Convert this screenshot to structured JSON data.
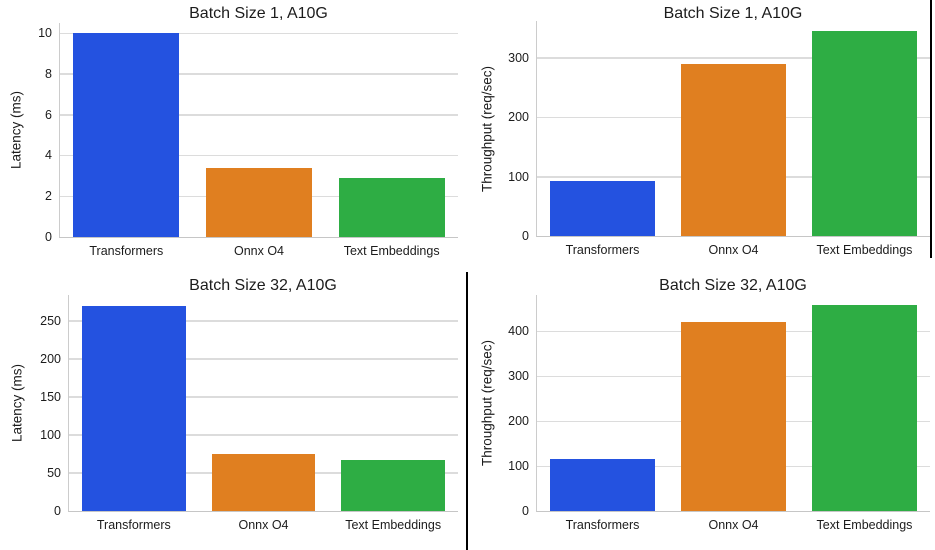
{
  "figure": {
    "background": "#ffffff",
    "layout": "2x2-grid"
  },
  "colors": {
    "grid": "#dcdcdc",
    "spine": "#cccccc",
    "text": "#1c1c1c",
    "frame_divider": "#000000"
  },
  "chart_data": [
    {
      "id": "batch1-latency",
      "type": "bar",
      "title": "Batch Size 1, A10G",
      "xlabel": "",
      "ylabel": "Latency (ms)",
      "categories": [
        "Transformers",
        "Onnx O4",
        "Text Embeddings"
      ],
      "values": [
        10.0,
        3.4,
        2.9
      ],
      "bar_colors": [
        "#2452e0",
        "#e07f20",
        "#2ead44"
      ],
      "yticks": [
        0,
        2,
        4,
        6,
        8,
        10
      ],
      "ylim": [
        0,
        10.5
      ],
      "grid": true,
      "legend": "none"
    },
    {
      "id": "batch1-throughput",
      "type": "bar",
      "title": "Batch Size 1, A10G",
      "xlabel": "",
      "ylabel": "Throughput (req/sec)",
      "categories": [
        "Transformers",
        "Onnx O4",
        "Text Embeddings"
      ],
      "values": [
        93,
        290,
        345
      ],
      "bar_colors": [
        "#2452e0",
        "#e07f20",
        "#2ead44"
      ],
      "yticks": [
        0,
        100,
        200,
        300
      ],
      "ylim": [
        0,
        362
      ],
      "grid": true,
      "legend": "none"
    },
    {
      "id": "batch32-latency",
      "type": "bar",
      "title": "Batch Size 32, A10G",
      "xlabel": "",
      "ylabel": "Latency (ms)",
      "categories": [
        "Transformers",
        "Onnx O4",
        "Text Embeddings"
      ],
      "values": [
        270,
        75,
        67
      ],
      "bar_colors": [
        "#2452e0",
        "#e07f20",
        "#2ead44"
      ],
      "yticks": [
        0,
        50,
        100,
        150,
        200,
        250
      ],
      "ylim": [
        0,
        284
      ],
      "grid": true,
      "legend": "none"
    },
    {
      "id": "batch32-throughput",
      "type": "bar",
      "title": "Batch Size 32, A10G",
      "xlabel": "",
      "ylabel": "Throughput (req/sec)",
      "categories": [
        "Transformers",
        "Onnx O4",
        "Text Embeddings"
      ],
      "values": [
        115,
        422,
        458
      ],
      "bar_colors": [
        "#2452e0",
        "#e07f20",
        "#2ead44"
      ],
      "yticks": [
        0,
        100,
        200,
        300,
        400
      ],
      "ylim": [
        0,
        481
      ],
      "grid": true,
      "legend": "none"
    }
  ]
}
